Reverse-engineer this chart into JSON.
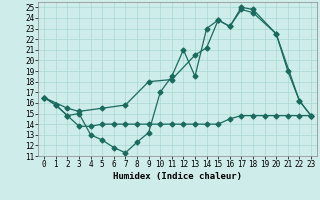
{
  "xlabel": "Humidex (Indice chaleur)",
  "bg_color": "#ceecea",
  "grid_color": "#aad8d4",
  "line_color": "#1a6b5e",
  "xlim": [
    -0.5,
    23.5
  ],
  "ylim": [
    11,
    25.5
  ],
  "yticks": [
    11,
    12,
    13,
    14,
    15,
    16,
    17,
    18,
    19,
    20,
    21,
    22,
    23,
    24,
    25
  ],
  "xticks": [
    0,
    1,
    2,
    3,
    4,
    5,
    6,
    7,
    8,
    9,
    10,
    11,
    12,
    13,
    14,
    15,
    16,
    17,
    18,
    19,
    20,
    21,
    22,
    23
  ],
  "line1_x": [
    0,
    1,
    2,
    3,
    4,
    5,
    6,
    7,
    8,
    9,
    10,
    11,
    12,
    13,
    14,
    15,
    16,
    17,
    18,
    20,
    21,
    22,
    23
  ],
  "line1_y": [
    16.5,
    15.8,
    14.8,
    15.0,
    13.0,
    12.5,
    11.8,
    11.3,
    12.3,
    13.2,
    17.0,
    18.5,
    21.0,
    18.5,
    23.0,
    23.8,
    23.2,
    25.0,
    24.8,
    22.5,
    19.0,
    16.2,
    14.8
  ],
  "line2_x": [
    0,
    2,
    3,
    5,
    7,
    9,
    11,
    13,
    14,
    15,
    16,
    17,
    18,
    20,
    22,
    23
  ],
  "line2_y": [
    16.5,
    15.5,
    15.2,
    15.5,
    15.8,
    18.0,
    18.2,
    20.5,
    21.2,
    23.8,
    23.2,
    24.8,
    24.5,
    22.5,
    16.2,
    14.8
  ],
  "line3_x": [
    0,
    1,
    2,
    3,
    4,
    5,
    6,
    7,
    8,
    9,
    10,
    11,
    12,
    13,
    14,
    15,
    16,
    17,
    18,
    19,
    20,
    21,
    22,
    23
  ],
  "line3_y": [
    16.5,
    15.8,
    14.8,
    13.8,
    13.8,
    14.0,
    14.0,
    14.0,
    14.0,
    14.0,
    14.0,
    14.0,
    14.0,
    14.0,
    14.0,
    14.0,
    14.5,
    14.8,
    14.8,
    14.8,
    14.8,
    14.8,
    14.8,
    14.8
  ]
}
